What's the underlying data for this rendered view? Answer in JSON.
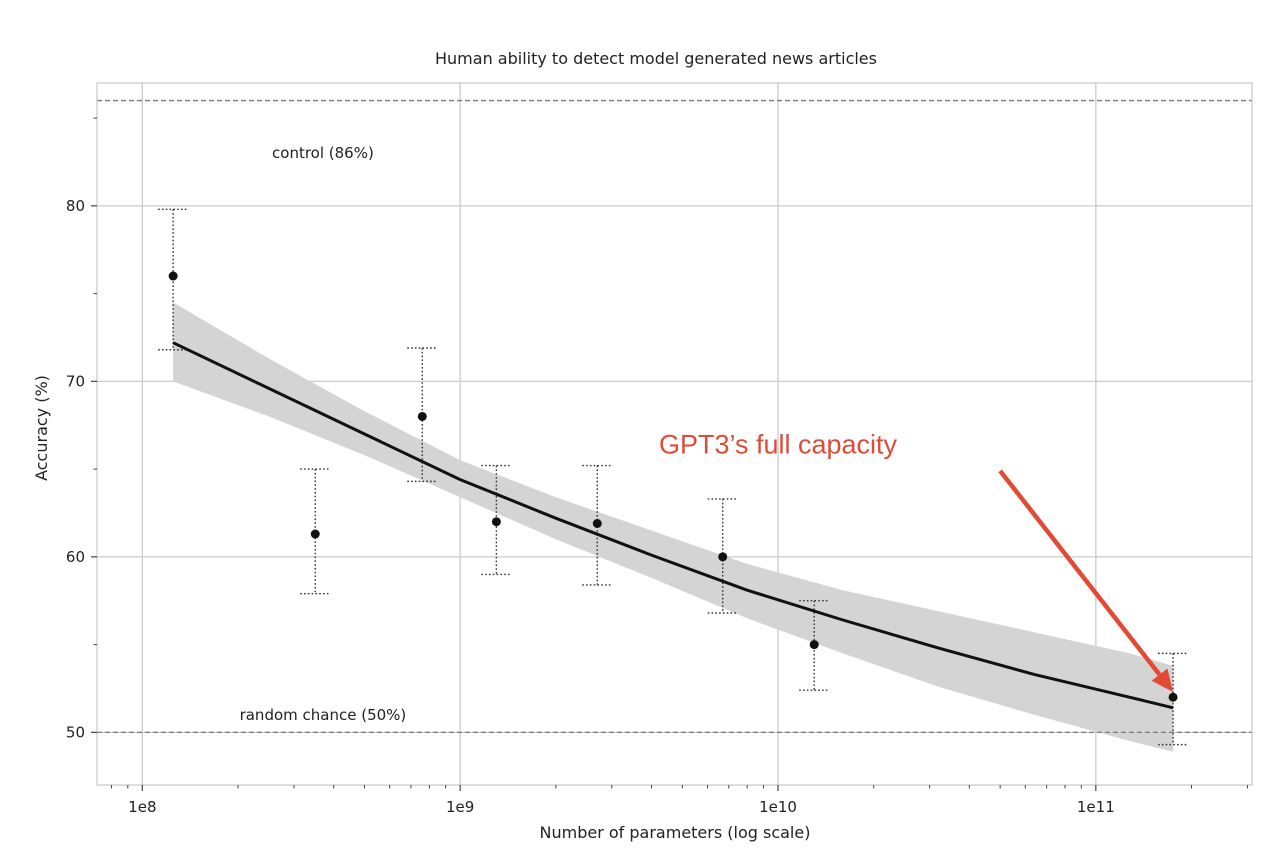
{
  "chart_data": {
    "type": "scatter",
    "title": "Human ability to detect model generated news articles",
    "xlabel": "Number of parameters (log scale)",
    "ylabel": "Accuracy (%)",
    "x_scale": "log",
    "xlim": [
      72000000,
      310000000000
    ],
    "ylim": [
      47,
      87
    ],
    "grid": true,
    "x_ticks": [
      {
        "value": 100000000,
        "label": "1e8"
      },
      {
        "value": 1000000000,
        "label": "1e9"
      },
      {
        "value": 10000000000,
        "label": "1e10"
      },
      {
        "value": 100000000000,
        "label": "1e11"
      }
    ],
    "y_ticks": [
      {
        "value": 50,
        "label": "50"
      },
      {
        "value": 60,
        "label": "60"
      },
      {
        "value": 70,
        "label": "70"
      },
      {
        "value": 80,
        "label": "80"
      }
    ],
    "y_minor_ticks": [
      55,
      65,
      75,
      85
    ],
    "reference_lines": [
      {
        "y": 86,
        "label": "control (86%)",
        "label_x": 370000000,
        "label_y": 83
      },
      {
        "y": 50,
        "label": "random chance (50%)",
        "label_x": 370000000,
        "label_y": 51
      }
    ],
    "points": [
      {
        "x": 125000000,
        "y": 76.0,
        "lo": 71.8,
        "hi": 79.8
      },
      {
        "x": 350000000,
        "y": 61.3,
        "lo": 57.9,
        "hi": 65.0
      },
      {
        "x": 760000000,
        "y": 68.0,
        "lo": 64.3,
        "hi": 71.9
      },
      {
        "x": 1300000000,
        "y": 62.0,
        "lo": 59.0,
        "hi": 65.2
      },
      {
        "x": 2700000000,
        "y": 61.9,
        "lo": 58.4,
        "hi": 65.2
      },
      {
        "x": 6700000000,
        "y": 60.0,
        "lo": 56.8,
        "hi": 63.3
      },
      {
        "x": 13000000000,
        "y": 55.0,
        "lo": 52.4,
        "hi": 57.5
      },
      {
        "x": 175000000000,
        "y": 52.0,
        "lo": 49.3,
        "hi": 54.5
      }
    ],
    "trend_line": {
      "x": [
        125000000,
        250000000,
        500000000,
        1000000000,
        2000000000,
        4000000000,
        8000000000,
        16000000000,
        32000000000,
        64000000000,
        128000000000,
        175000000000
      ],
      "y": [
        72.2,
        69.6,
        67.0,
        64.4,
        62.2,
        60.1,
        58.1,
        56.4,
        54.8,
        53.3,
        52.0,
        51.4
      ]
    },
    "confidence_band": {
      "x": [
        125000000,
        250000000,
        500000000,
        1000000000,
        2000000000,
        4000000000,
        8000000000,
        16000000000,
        32000000000,
        64000000000,
        128000000000,
        175000000000
      ],
      "lower": [
        70.0,
        68.0,
        65.8,
        63.4,
        61.0,
        58.8,
        56.5,
        54.5,
        52.6,
        51.0,
        49.5,
        48.9
      ],
      "upper": [
        74.5,
        71.3,
        68.3,
        65.5,
        63.4,
        61.5,
        59.6,
        58.1,
        56.9,
        55.7,
        54.5,
        53.8
      ]
    },
    "annotation": {
      "text": "GPT3’s full capacity",
      "color": "#e34a33",
      "text_x": 10000000000,
      "text_y": 66.4,
      "arrow_from": [
        50000000000,
        64.9
      ],
      "arrow_to": [
        175000000000,
        52.3
      ]
    },
    "colors": {
      "point": "#111111",
      "line": "#111111",
      "band": "#d4d4d4",
      "grid": "#cccccc",
      "reference": "#7a7a7a",
      "annotation": "#e34a33"
    }
  }
}
